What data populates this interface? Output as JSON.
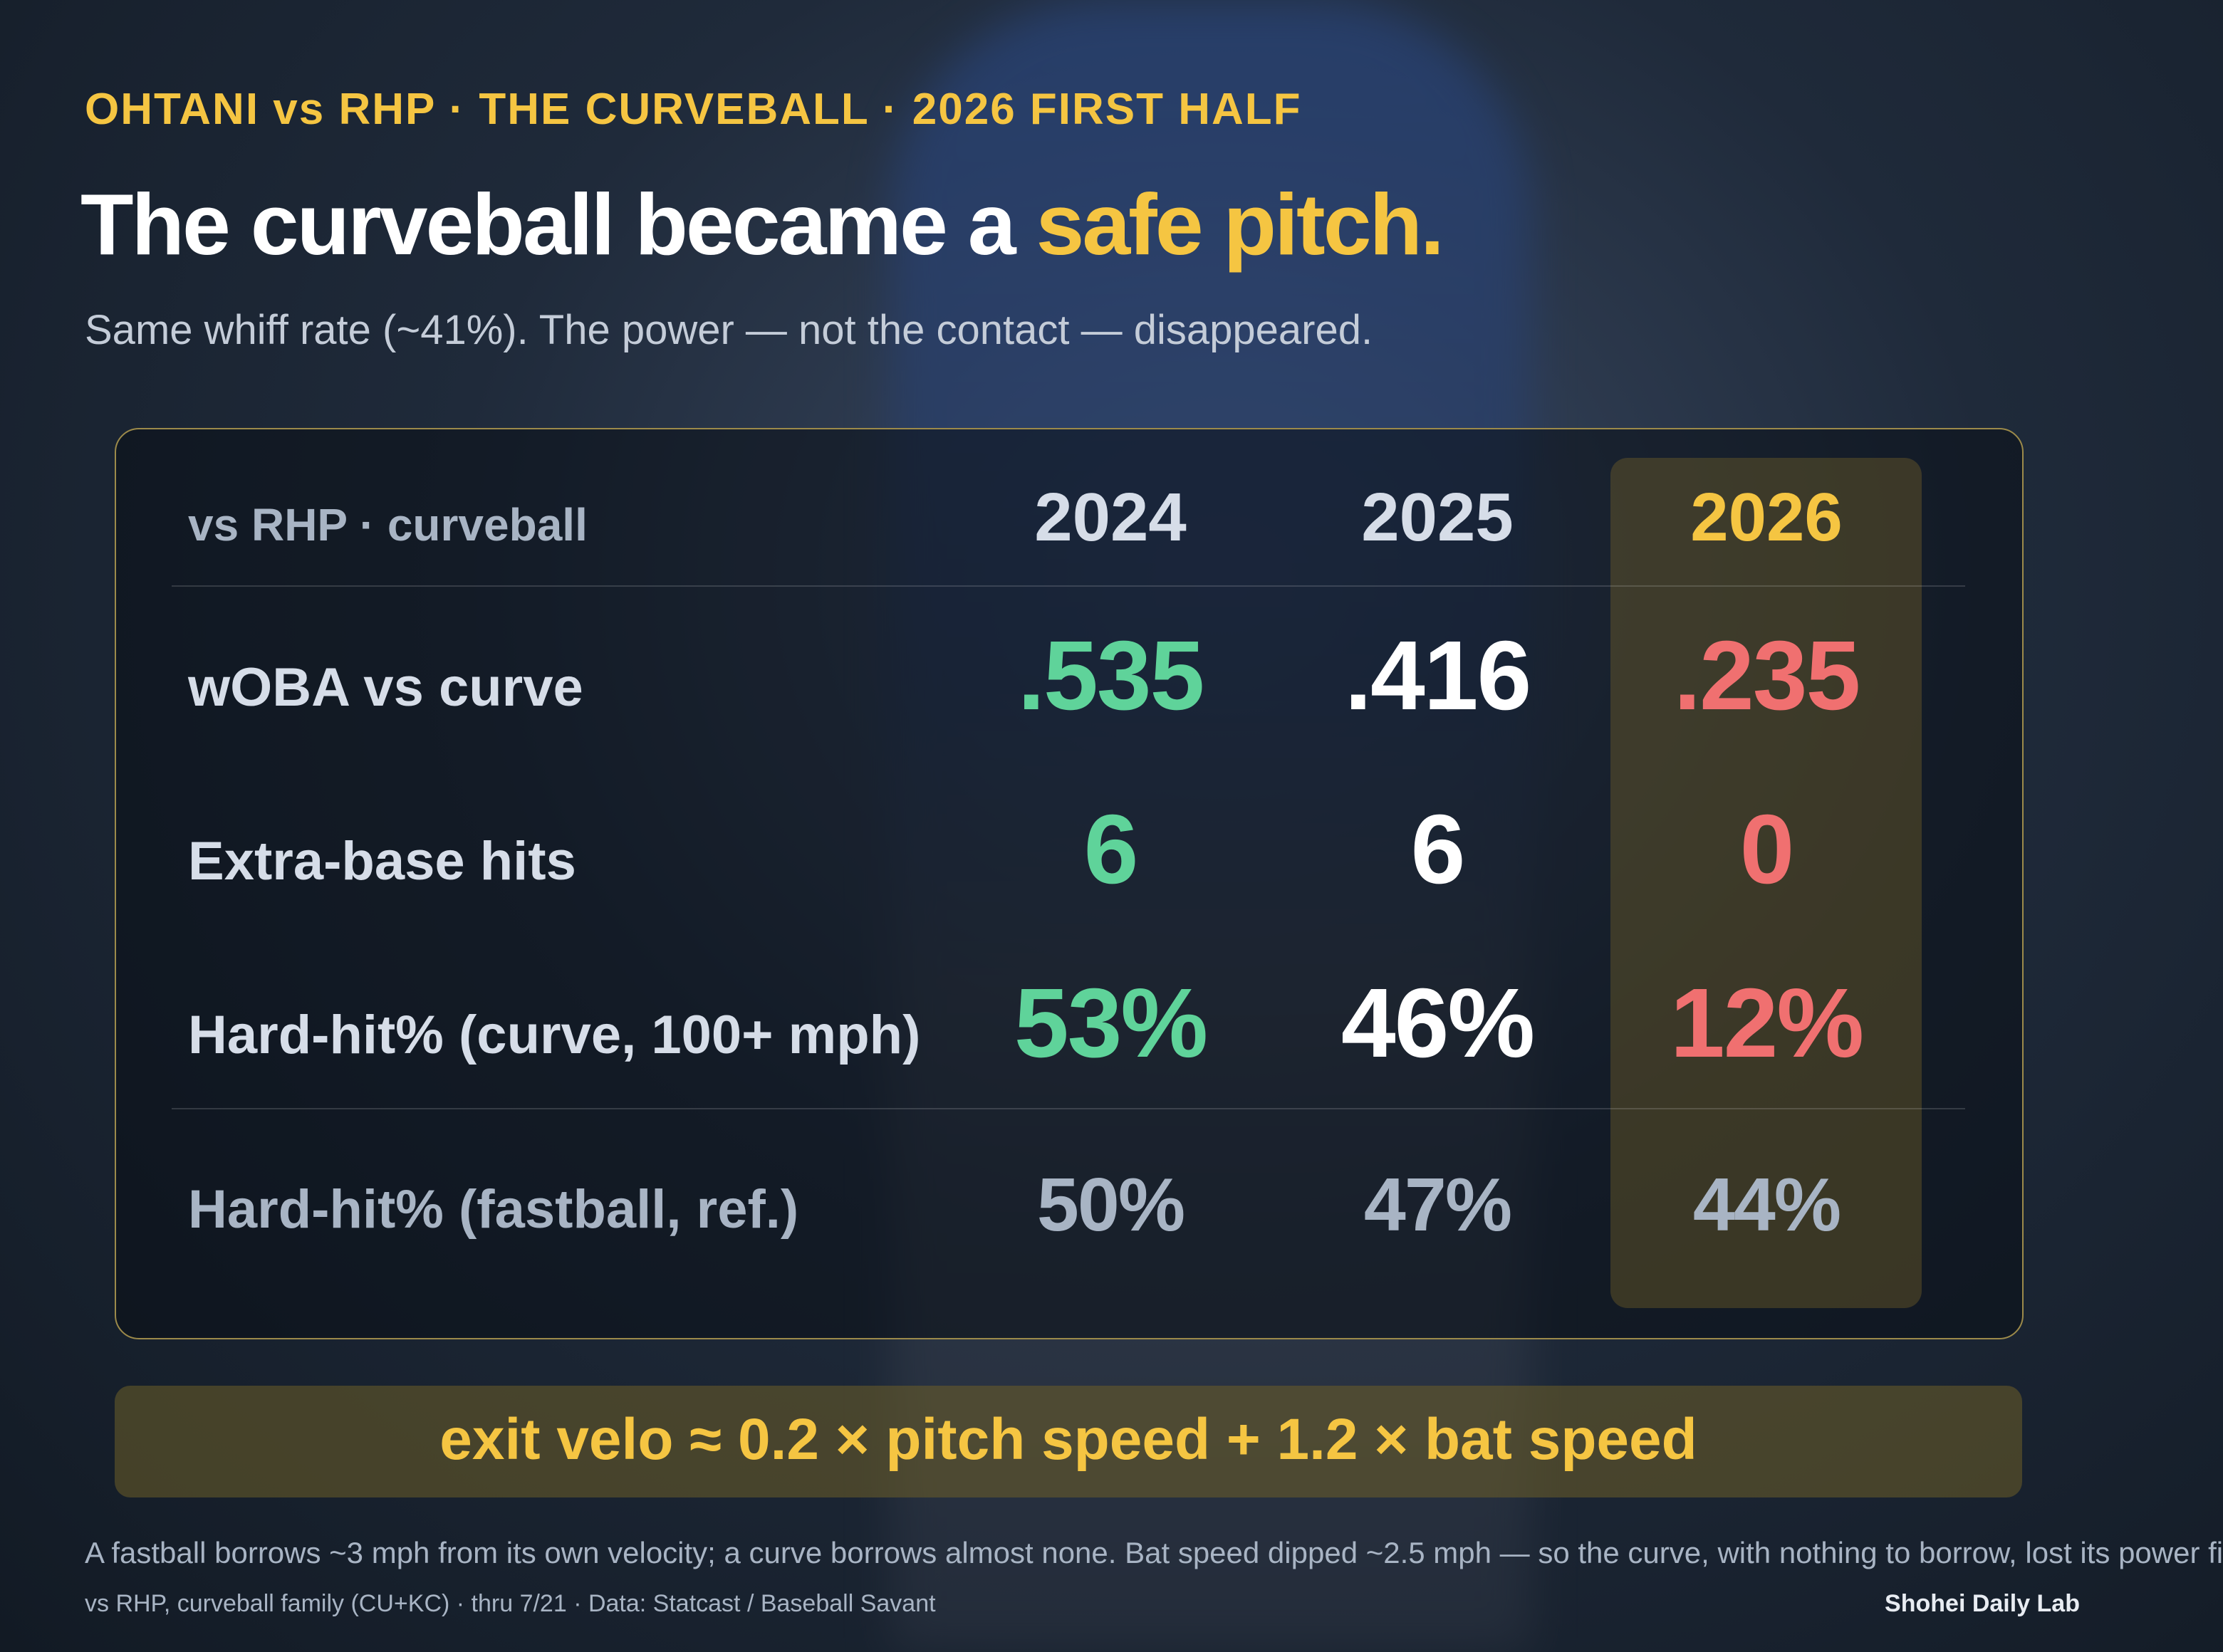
{
  "header": {
    "kicker": "OHTANI vs RHP · THE CURVEBALL · 2026 FIRST HALF",
    "title": "The curveball became a",
    "title_highlight": "safe pitch.",
    "subtitle": "Same whiff rate (~41%). The power — not the contact — disappeared."
  },
  "table": {
    "corner": "vs RHP · curveball",
    "columns": [
      "2024",
      "2025",
      "2026"
    ],
    "rows": [
      {
        "label": "wOBA vs curve",
        "values": [
          ".535",
          ".416",
          ".235"
        ]
      },
      {
        "label": "Extra-base hits",
        "values": [
          "6",
          "6",
          "0"
        ]
      },
      {
        "label": "Hard-hit% (curve, 100+ mph)",
        "values": [
          "53%",
          "46%",
          "12%"
        ]
      },
      {
        "label": "Hard-hit% (fastball, ref.)",
        "values": [
          "50%",
          "47%",
          "44%"
        ]
      }
    ]
  },
  "formula": "exit velo ≈ 0.2 × pitch speed + 1.2 × bat speed",
  "footer": {
    "note": "A fastball borrows ~3 mph from its own velocity; a curve borrows almost none. Bat speed dipped ~2.5 mph — so the curve, with nothing to borrow, lost its power fi",
    "source": "vs RHP, curveball family (CU+KC) · thru 7/21 · Data: Statcast / Baseball Savant",
    "credit": "Shohei Daily Lab"
  }
}
